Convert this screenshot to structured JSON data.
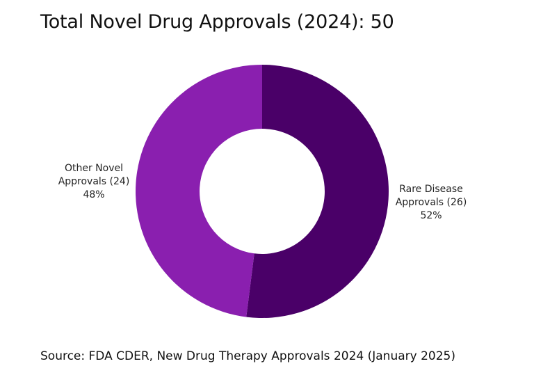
{
  "chart_data": {
    "type": "pie",
    "title": "Total Novel Drug Approvals (2024): 50",
    "slices": [
      {
        "name": "Rare Disease Approvals (26)",
        "name_lines": [
          "Rare Disease",
          "Approvals (26)"
        ],
        "value": 26,
        "percent_label": "52%",
        "color": "#4a0068"
      },
      {
        "name": "Other Novel Approvals (24)",
        "name_lines": [
          "Other Novel",
          "Approvals (24)"
        ],
        "value": 24,
        "percent_label": "48%",
        "color": "#8a1faf"
      }
    ],
    "donut": true
  },
  "source": "Source: FDA CDER, New Drug Therapy Approvals 2024 (January 2025)"
}
